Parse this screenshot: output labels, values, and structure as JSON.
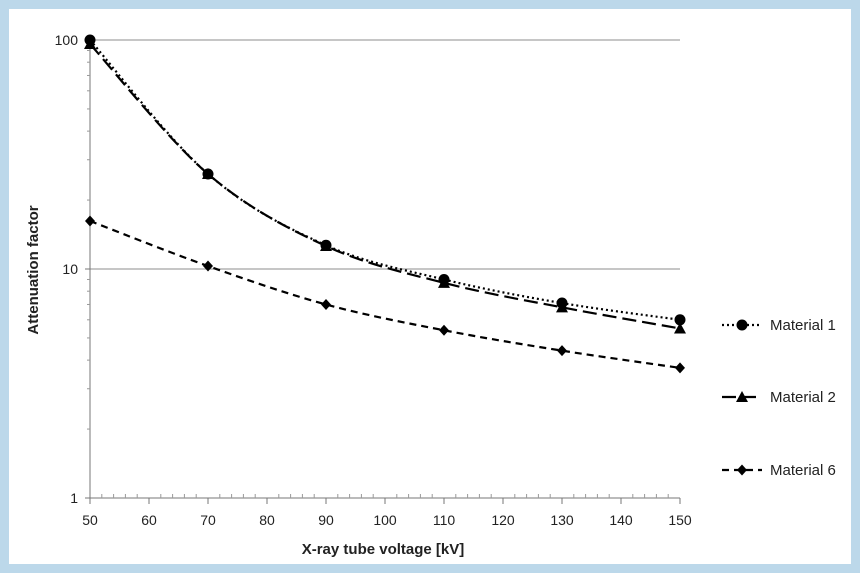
{
  "chart_data": {
    "type": "line",
    "title": "",
    "xlabel": "X-ray tube voltage [kV]",
    "ylabel": "Attenuation factor",
    "y_scale": "log",
    "xlim": [
      50,
      150
    ],
    "ylim": [
      1,
      100
    ],
    "x_ticks": [
      "50",
      "60",
      "70",
      "80",
      "90",
      "100",
      "110",
      "120",
      "130",
      "140",
      "150"
    ],
    "y_ticks": [
      "1",
      "10",
      "100"
    ],
    "grid": "horizontal major lines only",
    "legend_position": "right",
    "x": [
      50,
      70,
      90,
      110,
      130,
      150
    ],
    "series": [
      {
        "name": "Material 1",
        "values": [
          100,
          26,
          12.7,
          9.0,
          7.1,
          6.0
        ],
        "marker": "circle",
        "line_style": "dotted",
        "color": "#000000"
      },
      {
        "name": "Material 2",
        "values": [
          96,
          26,
          12.6,
          8.7,
          6.8,
          5.5
        ],
        "marker": "triangle",
        "line_style": "long-dash",
        "color": "#000000"
      },
      {
        "name": "Material 6",
        "values": [
          16.2,
          10.3,
          7.0,
          5.4,
          4.4,
          3.7
        ],
        "marker": "diamond",
        "line_style": "dashed",
        "color": "#000000"
      }
    ]
  }
}
